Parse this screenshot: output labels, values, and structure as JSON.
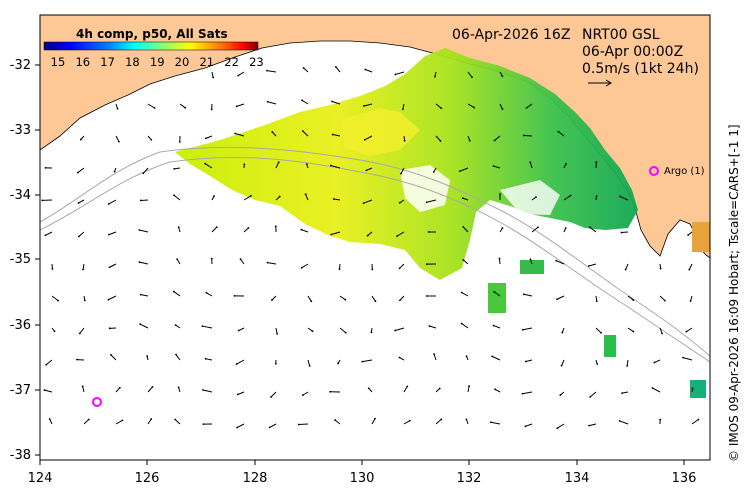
{
  "header": {
    "date_time": "06-Apr-2026 16Z",
    "product_line1": "NRT00 GSL",
    "product_line2": "06-Apr 00:00Z",
    "product_line3": "0.5m/s (1kt 24h)"
  },
  "colorbar": {
    "title": "4h comp, p50, All Sats",
    "ticks": [
      "15",
      "16",
      "17",
      "18",
      "19",
      "20",
      "21",
      "22",
      "23"
    ],
    "colors": [
      "#00007f",
      "#0000ff",
      "#007fff",
      "#00ffff",
      "#7fff7f",
      "#ffff00",
      "#ff7f00",
      "#ff0000",
      "#7f0000"
    ]
  },
  "axes": {
    "x_ticks": [
      "124",
      "126",
      "128",
      "130",
      "132",
      "134",
      "136"
    ],
    "y_ticks": [
      "-32",
      "-33",
      "-34",
      "-35",
      "-36",
      "-37",
      "-38"
    ]
  },
  "markers": {
    "argo_label": "Argo (1)"
  },
  "credit": "© IMOS 09-Apr-2026 16:09 Hobart; Tscale=CARS+[-1 1]",
  "colors": {
    "land": "#fdc896",
    "marker": "#ff00ff",
    "sst_green": "#1fb454",
    "sst_yellowgreen": "#b8e600",
    "sst_yellow": "#e8f000"
  }
}
